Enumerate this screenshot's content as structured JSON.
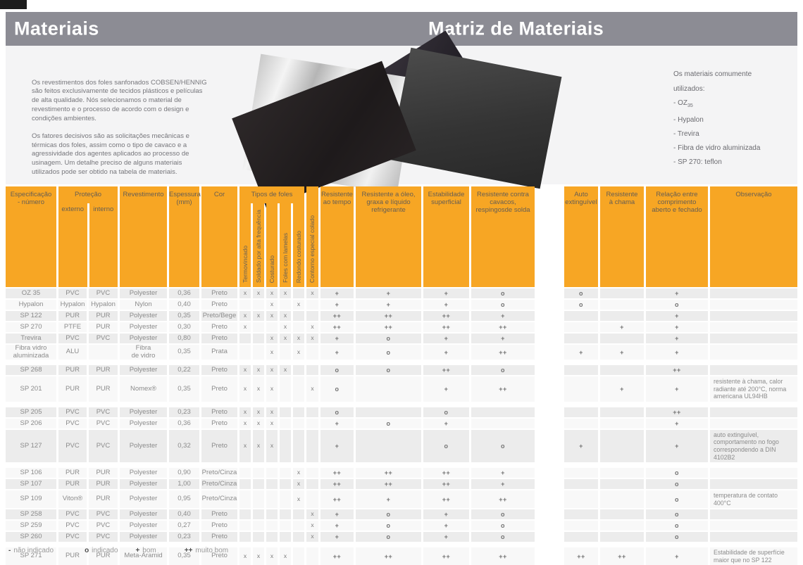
{
  "titles": {
    "left": "Materiais",
    "right": "Matriz de Materiais"
  },
  "intro": {
    "paragraph1": "Os revestimentos dos foles sanfonados COBSEN/HENNIG\nsão feitos exclusivamente de tecidos plásticos e películas\nde alta qualidade. Nós selecionamos o material de\nrevestimento e o processo de acordo com o design e\ncondições ambientes.",
    "paragraph2": "Os fatores decisivos são as solicitações mecânicas e\ntérmicas dos foles, assim como o tipo de cavaco e a\nagressividade dos agentes aplicados ao processo de\nusinagem. Um detalhe preciso de alguns materiais\nutilizados pode ser obtido na tabela de materiais."
  },
  "materials_list": {
    "heading": "Os materiais comumente\nutilizados:",
    "bullet": "-",
    "items": [
      {
        "text": "OZ",
        "sub": "35"
      },
      {
        "text": "Hypalon"
      },
      {
        "text": "Trevira"
      },
      {
        "text": "Fibra de vidro aluminizada"
      },
      {
        "text": "SP 270: teflon"
      }
    ]
  },
  "table": {
    "headers": {
      "spec": "Especificação\n- número",
      "protecao": "Proteção",
      "externo": "externo",
      "interno": "interno",
      "revestimento": "Revestimento",
      "espessura": "Espessura\n(mm)",
      "cor": "Cor",
      "tipos": "Tipos de foles",
      "tipos_subs": [
        "Termovincado",
        "Soldado por alta frequência",
        "Costurado",
        "Foles com lamelas",
        "Redondo costurado"
      ],
      "contorno": "Contorno especial colado",
      "tempo": "Resistente\nao tempo",
      "oleo": "Resistente a óleo,\ngraxa e líquido\nrefrigerante",
      "estab": "Estabilidade\nsuperficial",
      "cavacos": "Resistente contra cavacos,\nrespingosde solda",
      "auto": "Auto\nextinguível",
      "chama": "Resistente\nà chama",
      "relacao": "Relação entre\ncomprimento\naberto e fechado",
      "obs": "Observação"
    },
    "rows": [
      {
        "spec": "OZ 35",
        "ext": "PVC",
        "int": "PVC",
        "rev": "Polyester",
        "esp": "0,36",
        "cor": "Preto",
        "foles": [
          "x",
          "x",
          "x",
          "x",
          "",
          "x"
        ],
        "tempo": "+",
        "oleo": "+",
        "estab": "+",
        "cavacos": "o",
        "auto": "o",
        "chama": "",
        "relacao": "+",
        "obs": ""
      },
      {
        "spec": "Hypalon",
        "ext": "Hypalon",
        "int": "Hypalon",
        "rev": "Nylon",
        "esp": "0,40",
        "cor": "Preto",
        "foles": [
          "",
          "",
          "x",
          "",
          "x",
          ""
        ],
        "tempo": "+",
        "oleo": "+",
        "estab": "+",
        "cavacos": "o",
        "auto": "o",
        "chama": "",
        "relacao": "o",
        "obs": ""
      },
      {
        "spec": "SP 122",
        "ext": "PUR",
        "int": "PUR",
        "rev": "Polyester",
        "esp": "0,35",
        "cor": "Preto/Bege",
        "foles": [
          "x",
          "x",
          "x",
          "x",
          "",
          ""
        ],
        "tempo": "++",
        "oleo": "++",
        "estab": "++",
        "cavacos": "+",
        "auto": "",
        "chama": "",
        "relacao": "+",
        "obs": ""
      },
      {
        "spec": "SP 270",
        "ext": "PTFE",
        "int": "PUR",
        "rev": "Polyester",
        "esp": "0,30",
        "cor": "Preto",
        "foles": [
          "x",
          "",
          "",
          "x",
          "",
          "x"
        ],
        "tempo": "++",
        "oleo": "++",
        "estab": "++",
        "cavacos": "++",
        "auto": "",
        "chama": "+",
        "relacao": "+",
        "obs": ""
      },
      {
        "spec": "Trevira",
        "ext": "PVC",
        "int": "PVC",
        "rev": "Polyester",
        "esp": "0,80",
        "cor": "Preto",
        "foles": [
          "",
          "",
          "x",
          "x",
          "x",
          "x"
        ],
        "tempo": "+",
        "oleo": "o",
        "estab": "+",
        "cavacos": "+",
        "auto": "",
        "chama": "",
        "relacao": "+",
        "obs": ""
      },
      {
        "spec": "Fibra vidro\naluminizada",
        "ext": "ALU",
        "int": "",
        "rev": "Fibra\nde vidro",
        "esp": "0,35",
        "cor": "Prata",
        "foles": [
          "",
          "",
          "x",
          "",
          "x",
          ""
        ],
        "tempo": "+",
        "oleo": "o",
        "estab": "+",
        "cavacos": "++",
        "auto": "+",
        "chama": "+",
        "relacao": "+",
        "obs": ""
      },
      {
        "spec": "SP 268",
        "ext": "PUR",
        "int": "PUR",
        "rev": "Polyester",
        "esp": "0,22",
        "cor": "Preto",
        "gap_before": true,
        "foles": [
          "x",
          "x",
          "x",
          "x",
          "",
          ""
        ],
        "tempo": "o",
        "oleo": "o",
        "estab": "++",
        "cavacos": "o",
        "auto": "",
        "chama": "",
        "relacao": "++",
        "obs": ""
      },
      {
        "spec": "SP 201",
        "ext": "PUR",
        "int": "PUR",
        "rev": "Nomex®",
        "esp": "0,35",
        "cor": "Preto",
        "foles": [
          "x",
          "x",
          "x",
          "",
          "",
          "x"
        ],
        "tempo": "o",
        "oleo": "",
        "estab": "+",
        "cavacos": "++",
        "auto": "",
        "chama": "+",
        "relacao": "+",
        "obs": "resistente à chama, calor radiante até 200°C, norma americana UL94HB"
      },
      {
        "spec": "SP 205",
        "ext": "PVC",
        "int": "PVC",
        "rev": "Polyester",
        "esp": "0,23",
        "cor": "Preto",
        "gap_before": true,
        "foles": [
          "x",
          "x",
          "x",
          "",
          "",
          ""
        ],
        "tempo": "o",
        "oleo": "",
        "estab": "o",
        "cavacos": "",
        "auto": "",
        "chama": "",
        "relacao": "++",
        "obs": ""
      },
      {
        "spec": "SP 206",
        "ext": "PVC",
        "int": "PVC",
        "rev": "Polyester",
        "esp": "0,36",
        "cor": "Preto",
        "foles": [
          "x",
          "x",
          "x",
          "",
          "",
          ""
        ],
        "tempo": "+",
        "oleo": "o",
        "estab": "+",
        "cavacos": "",
        "auto": "",
        "chama": "",
        "relacao": "+",
        "obs": ""
      },
      {
        "spec": "SP 127",
        "ext": "PVC",
        "int": "PVC",
        "rev": "Polyester",
        "esp": "0,32",
        "cor": "Preto",
        "foles": [
          "x",
          "x",
          "x",
          "",
          "",
          ""
        ],
        "tempo": "+",
        "oleo": "",
        "estab": "o",
        "cavacos": "o",
        "auto": "+",
        "chama": "",
        "relacao": "+",
        "obs": "auto extinguível, comportamento no fogo correspondendo a DIN 4102B2"
      },
      {
        "spec": "SP 106",
        "ext": "PUR",
        "int": "PUR",
        "rev": "Polyester",
        "esp": "0,90",
        "cor": "Preto/Cinza",
        "gap_before": true,
        "foles": [
          "",
          "",
          "",
          "",
          "x",
          ""
        ],
        "tempo": "++",
        "oleo": "++",
        "estab": "++",
        "cavacos": "+",
        "auto": "",
        "chama": "",
        "relacao": "o",
        "obs": ""
      },
      {
        "spec": "SP 107",
        "ext": "PUR",
        "int": "PUR",
        "rev": "Polyester",
        "esp": "1,00",
        "cor": "Preto/Cinza",
        "foles": [
          "",
          "",
          "",
          "",
          "x",
          ""
        ],
        "tempo": "++",
        "oleo": "++",
        "estab": "++",
        "cavacos": "+",
        "auto": "",
        "chama": "",
        "relacao": "o",
        "obs": ""
      },
      {
        "spec": "SP 109",
        "ext": "Viton®",
        "int": "PUR",
        "rev": "Polyester",
        "esp": "0,95",
        "cor": "Preto/Cinza",
        "foles": [
          "",
          "",
          "",
          "",
          "x",
          ""
        ],
        "tempo": "++",
        "oleo": "+",
        "estab": "++",
        "cavacos": "++",
        "auto": "",
        "chama": "",
        "relacao": "o",
        "obs": "temperatura de contato 400°C"
      },
      {
        "spec": "SP 258",
        "ext": "PVC",
        "int": "PVC",
        "rev": "Polyester",
        "esp": "0,40",
        "cor": "Preto",
        "foles": [
          "",
          "",
          "",
          "",
          "",
          "x"
        ],
        "tempo": "+",
        "oleo": "o",
        "estab": "+",
        "cavacos": "o",
        "auto": "",
        "chama": "",
        "relacao": "o",
        "obs": ""
      },
      {
        "spec": "SP 259",
        "ext": "PVC",
        "int": "PVC",
        "rev": "Polyester",
        "esp": "0,27",
        "cor": "Preto",
        "foles": [
          "",
          "",
          "",
          "",
          "",
          "x"
        ],
        "tempo": "+",
        "oleo": "o",
        "estab": "+",
        "cavacos": "o",
        "auto": "",
        "chama": "",
        "relacao": "o",
        "obs": ""
      },
      {
        "spec": "SP 260",
        "ext": "PVC",
        "int": "PVC",
        "rev": "Polyester",
        "esp": "0,23",
        "cor": "Preto",
        "foles": [
          "",
          "",
          "",
          "",
          "",
          "x"
        ],
        "tempo": "+",
        "oleo": "o",
        "estab": "+",
        "cavacos": "o",
        "auto": "",
        "chama": "",
        "relacao": "o",
        "obs": ""
      },
      {
        "spec": "SP 271",
        "ext": "PUR",
        "int": "PUR",
        "rev": "Meta-Aramid",
        "esp": "0,35",
        "cor": "Preto",
        "gap_before": true,
        "foles": [
          "x",
          "x",
          "x",
          "x",
          "",
          ""
        ],
        "tempo": "++",
        "oleo": "++",
        "estab": "++",
        "cavacos": "++",
        "auto": "++",
        "chama": "++",
        "relacao": "+",
        "obs": "Estabilidade de superfície maior que no SP 122"
      }
    ]
  },
  "legend": [
    {
      "symbol": "-",
      "label": "não indicado"
    },
    {
      "symbol": "o",
      "label": "indicado"
    },
    {
      "symbol": "+",
      "label": "bom"
    },
    {
      "symbol": "++",
      "label": "muito bom"
    }
  ],
  "colors": {
    "header_orange": "#F7A624",
    "titlebar_gray": "#8C8C94",
    "stripe_dark": "#ECECEC",
    "stripe_light": "#F8F8F8"
  }
}
